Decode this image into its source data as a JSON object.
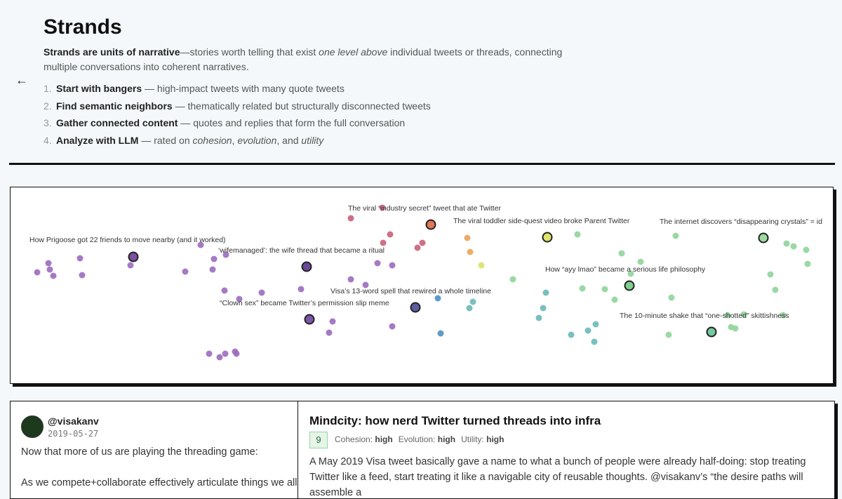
{
  "header": {
    "title": "Strands",
    "intro": [
      "Strands are units of narrative",
      "—stories worth telling that exist ",
      "one level above",
      " individual tweets or threads, connecting multiple conversations into coherent narratives."
    ],
    "steps": [
      {
        "number": "1.",
        "title": "Start with bangers",
        "text": [
          " — high-impact tweets with many quote tweets"
        ]
      },
      {
        "number": "2.",
        "title": "Find semantic neighbors",
        "text": [
          " — thematically related but structurally disconnected tweets"
        ]
      },
      {
        "number": "3.",
        "title": "Gather connected content",
        "text": [
          " — quotes and replies that form the full conversation"
        ]
      },
      {
        "number": "4.",
        "title": "Analyze with LLM",
        "text": [
          " — rated on ",
          "cohesion",
          ", ",
          "evolution",
          ", and ",
          "utility"
        ]
      }
    ]
  },
  "map": {
    "labels": [
      "How Prigoose got 22 friends to move nearby (and it worked)",
      "‘wifemanaged’: the wife thread that became a ritual",
      "The viral “industry secret” tweet that ate Twitter",
      "The viral toddler side-quest video broke Parent Twitter",
      "The internet discovers “disappearing crystals” = id",
      "How “ayy lmao” became a serious life philosophy",
      "Visa’s 13-word spell that rewired a whole timeline",
      "“Clown sex” became Twitter’s permission slip meme",
      "The 10-minute shake that “one-shotted” skittishness"
    ]
  },
  "tweet": {
    "handle": "@visakanv",
    "date": "2019-05-27",
    "paragraphs": [
      "Now that more of us are playing the threading game:",
      "As we compete+collaborate effectively articulate things we all"
    ]
  },
  "strand": {
    "title": "Mindcity: how nerd Twitter turned threads into infra",
    "score": "9",
    "ratings": [
      {
        "label": "Cohesion:",
        "value": "high"
      },
      {
        "label": "Evolution:",
        "value": "high"
      },
      {
        "label": "Utility:",
        "value": "high"
      }
    ],
    "summary": "A May 2019 Visa tweet basically gave a name to what a bunch of people were already half-doing: stop treating Twitter like a feed, start treating it like a navigable city of reusable thoughts. @visakanv’s “the desire paths will assemble a"
  }
}
